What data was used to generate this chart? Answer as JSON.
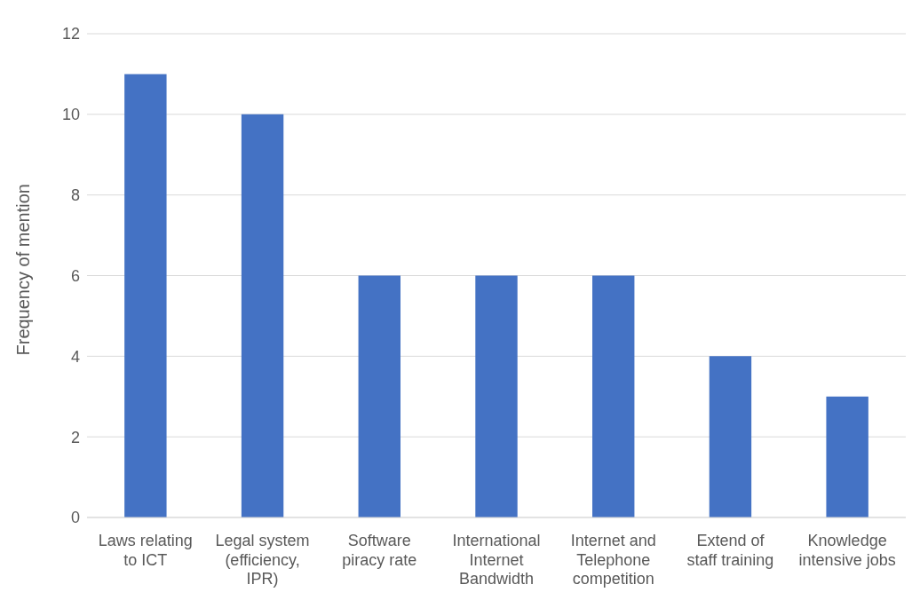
{
  "chart_data": {
    "type": "bar",
    "ylabel": "Frequency of mention",
    "categories": [
      "Laws relating to ICT",
      "Legal system (efficiency, IPR)",
      "Software piracy rate",
      "International Internet Bandwidth",
      "Internet and Telephone competition",
      "Extend of staff training",
      "Knowledge intensive jobs"
    ],
    "values": [
      11,
      10,
      6,
      6,
      6,
      4,
      3
    ],
    "color": "#4472c4",
    "ylim": [
      0,
      12
    ],
    "yticks": [
      0,
      2,
      4,
      6,
      8,
      10,
      12
    ],
    "grid": "y",
    "legend": false
  }
}
